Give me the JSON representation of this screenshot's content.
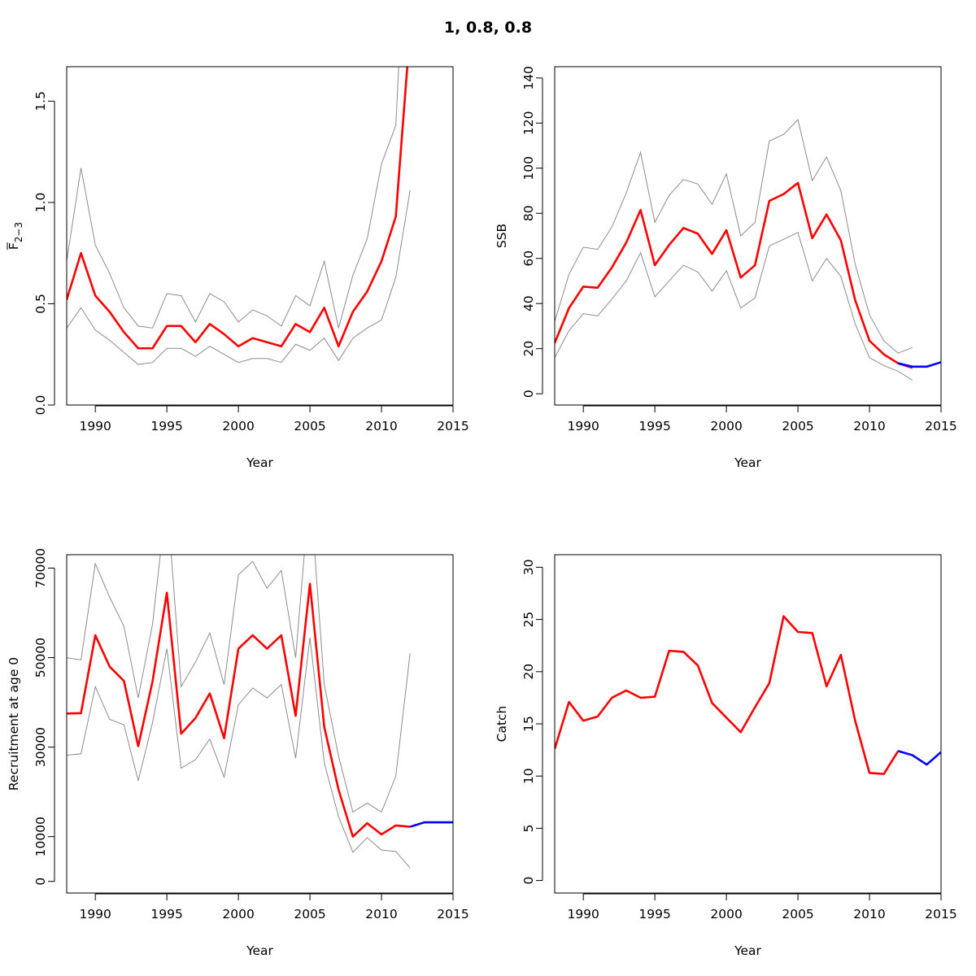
{
  "title": "1, 0.8, 0.8",
  "colors": {
    "estimate": "#ff0000",
    "projection": "#0000ff",
    "interval": "#8c8c8c"
  },
  "chart_data": [
    {
      "type": "line",
      "id": "fbar",
      "xlabel": "Year",
      "ylabel": "F",
      "ylabel_sub": "2−3",
      "xlim": [
        1988,
        2015
      ],
      "ylim": [
        0,
        1.67
      ],
      "xticks": [
        1990,
        1995,
        2000,
        2005,
        2010,
        2015
      ],
      "yticks": [
        0.0,
        0.5,
        1.0,
        1.5
      ],
      "ytick_labels": [
        "0.0",
        "0.5",
        "1.0",
        "1.5"
      ],
      "series": [
        {
          "role": "estimate",
          "x": [
            1988,
            1989,
            1990,
            1991,
            1992,
            1993,
            1994,
            1995,
            1996,
            1997,
            1998,
            1999,
            2000,
            2001,
            2002,
            2003,
            2004,
            2005,
            2006,
            2007,
            2008,
            2009,
            2010,
            2011,
            2012
          ],
          "y": [
            0.52,
            0.75,
            0.54,
            0.46,
            0.36,
            0.28,
            0.28,
            0.39,
            0.39,
            0.31,
            0.4,
            0.35,
            0.29,
            0.33,
            0.31,
            0.29,
            0.4,
            0.36,
            0.48,
            0.29,
            0.46,
            0.56,
            0.71,
            0.93,
            1.85
          ]
        },
        {
          "role": "upper",
          "x": [
            1988,
            1989,
            1990,
            1991,
            1992,
            1993,
            1994,
            1995,
            1996,
            1997,
            1998,
            1999,
            2000,
            2001,
            2002,
            2003,
            2004,
            2005,
            2006,
            2007,
            2008,
            2009,
            2010,
            2011,
            2012
          ],
          "y": [
            0.71,
            1.17,
            0.79,
            0.65,
            0.48,
            0.39,
            0.38,
            0.55,
            0.54,
            0.41,
            0.55,
            0.51,
            0.41,
            0.47,
            0.44,
            0.39,
            0.54,
            0.49,
            0.71,
            0.38,
            0.64,
            0.82,
            1.19,
            1.38,
            2.8
          ]
        },
        {
          "role": "lower",
          "x": [
            1988,
            1989,
            1990,
            1991,
            1992,
            1993,
            1994,
            1995,
            1996,
            1997,
            1998,
            1999,
            2000,
            2001,
            2002,
            2003,
            2004,
            2005,
            2006,
            2007,
            2008,
            2009,
            2010,
            2011,
            2012
          ],
          "y": [
            0.38,
            0.48,
            0.37,
            0.32,
            0.26,
            0.2,
            0.21,
            0.28,
            0.28,
            0.24,
            0.29,
            0.25,
            0.21,
            0.23,
            0.23,
            0.21,
            0.3,
            0.27,
            0.33,
            0.22,
            0.33,
            0.38,
            0.42,
            0.63,
            1.06
          ]
        }
      ]
    },
    {
      "type": "line",
      "id": "ssb",
      "xlabel": "Year",
      "ylabel": "SSB",
      "xlim": [
        1988,
        2015
      ],
      "ylim": [
        -5,
        145
      ],
      "xticks": [
        1990,
        1995,
        2000,
        2005,
        2010,
        2015
      ],
      "yticks": [
        0,
        20,
        40,
        60,
        80,
        100,
        120,
        140
      ],
      "ytick_labels": [
        "0",
        "20",
        "40",
        "60",
        "80",
        "100",
        "120",
        "140"
      ],
      "series": [
        {
          "role": "estimate",
          "x": [
            1988,
            1989,
            1990,
            1991,
            1992,
            1993,
            1994,
            1995,
            1996,
            1997,
            1998,
            1999,
            2000,
            2001,
            2002,
            2003,
            2004,
            2005,
            2006,
            2007,
            2008,
            2009,
            2010,
            2011,
            2012,
            2013
          ],
          "y": [
            22.5,
            38,
            47.5,
            47,
            56,
            67,
            81.5,
            57,
            66,
            73.5,
            71,
            62,
            72.5,
            51.5,
            57,
            85.5,
            88.5,
            93.5,
            69,
            79.5,
            68,
            41.5,
            23.5,
            17.5,
            13.5,
            11.5
          ]
        },
        {
          "role": "upper",
          "x": [
            1988,
            1989,
            1990,
            1991,
            1992,
            1993,
            1994,
            1995,
            1996,
            1997,
            1998,
            1999,
            2000,
            2001,
            2002,
            2003,
            2004,
            2005,
            2006,
            2007,
            2008,
            2009,
            2010,
            2011,
            2012,
            2013
          ],
          "y": [
            32,
            53,
            65,
            64,
            74,
            89,
            107,
            76,
            88,
            95,
            93,
            84,
            97.5,
            70,
            76,
            112,
            115,
            121.5,
            94.5,
            105,
            90,
            57.5,
            35,
            23.5,
            18,
            20.5
          ]
        },
        {
          "role": "lower",
          "x": [
            1988,
            1989,
            1990,
            1991,
            1992,
            1993,
            1994,
            1995,
            1996,
            1997,
            1998,
            1999,
            2000,
            2001,
            2002,
            2003,
            2004,
            2005,
            2006,
            2007,
            2008,
            2009,
            2010,
            2011,
            2012,
            2013
          ],
          "y": [
            16,
            28,
            35.5,
            34.5,
            42,
            50,
            62.5,
            43,
            50,
            57,
            54,
            45.5,
            54.5,
            38,
            42.5,
            65.5,
            68.5,
            71.5,
            50,
            60,
            52,
            31,
            16,
            12.5,
            10,
            6
          ]
        },
        {
          "role": "projection",
          "x": [
            2012,
            2013,
            2014,
            2015
          ],
          "y": [
            13.5,
            12,
            12,
            14
          ]
        }
      ]
    },
    {
      "type": "line",
      "id": "recruitment",
      "xlabel": "Year",
      "ylabel": "Recruitment at age 0",
      "xlim": [
        1988,
        2015
      ],
      "ylim": [
        -2600,
        73000
      ],
      "xticks": [
        1990,
        1995,
        2000,
        2005,
        2010,
        2015
      ],
      "yticks": [
        0,
        10000,
        30000,
        50000,
        70000
      ],
      "ytick_labels": [
        "0",
        "10000",
        "30000",
        "50000",
        "70000"
      ],
      "series": [
        {
          "role": "estimate",
          "x": [
            1988,
            1989,
            1990,
            1991,
            1992,
            1993,
            1994,
            1995,
            1996,
            1997,
            1998,
            1999,
            2000,
            2001,
            2002,
            2003,
            2004,
            2005,
            2006,
            2007,
            2008,
            2009,
            2010,
            2011,
            2012
          ],
          "y": [
            37500,
            37600,
            55000,
            48000,
            44800,
            30200,
            44700,
            64500,
            33000,
            36500,
            42000,
            32000,
            52000,
            55000,
            52000,
            55000,
            37000,
            66500,
            34500,
            20500,
            10000,
            13000,
            10500,
            12500,
            12200
          ]
        },
        {
          "role": "upper",
          "x": [
            1988,
            1989,
            1990,
            1991,
            1992,
            1993,
            1994,
            1995,
            1996,
            1997,
            1998,
            1999,
            2000,
            2001,
            2002,
            2003,
            2004,
            2005,
            2006,
            2007,
            2008,
            2009,
            2010,
            2011,
            2012
          ],
          "y": [
            50000,
            49500,
            71000,
            63500,
            57000,
            41000,
            57500,
            86000,
            43500,
            49000,
            55500,
            44000,
            68500,
            71500,
            65500,
            69500,
            50000,
            88000,
            44000,
            28000,
            15500,
            17500,
            15500,
            23500,
            51000
          ]
        },
        {
          "role": "lower",
          "x": [
            1988,
            1989,
            1990,
            1991,
            1992,
            1993,
            1994,
            1995,
            1996,
            1997,
            1998,
            1999,
            2000,
            2001,
            2002,
            2003,
            2004,
            2005,
            2006,
            2007,
            2008,
            2009,
            2010,
            2011,
            2012
          ],
          "y": [
            28200,
            28500,
            43500,
            36200,
            35000,
            22500,
            35500,
            52000,
            25300,
            27200,
            31800,
            23300,
            39500,
            43200,
            41000,
            44000,
            27500,
            54500,
            26500,
            14500,
            6500,
            9800,
            7000,
            6700,
            3000
          ]
        },
        {
          "role": "projection",
          "x": [
            2012,
            2013,
            2014,
            2015
          ],
          "y": [
            12200,
            13200,
            13200,
            13200
          ]
        }
      ]
    },
    {
      "type": "line",
      "id": "catch",
      "xlabel": "Year",
      "ylabel": "Catch",
      "xlim": [
        1988,
        2015
      ],
      "ylim": [
        -1.2,
        31.2
      ],
      "xticks": [
        1990,
        1995,
        2000,
        2005,
        2010,
        2015
      ],
      "yticks": [
        0,
        5,
        10,
        15,
        20,
        25,
        30
      ],
      "ytick_labels": [
        "0",
        "5",
        "10",
        "15",
        "20",
        "25",
        "30"
      ],
      "series": [
        {
          "role": "estimate",
          "x": [
            1988,
            1989,
            1990,
            1991,
            1992,
            1993,
            1994,
            1995,
            1996,
            1997,
            1998,
            1999,
            2000,
            2001,
            2002,
            2003,
            2004,
            2005,
            2006,
            2007,
            2008,
            2009,
            2010,
            2011,
            2012
          ],
          "y": [
            12.6,
            17.1,
            15.3,
            15.7,
            17.5,
            18.2,
            17.5,
            17.6,
            22.0,
            21.9,
            20.6,
            17.0,
            15.6,
            14.2,
            16.6,
            18.9,
            25.3,
            23.8,
            23.7,
            18.6,
            21.6,
            15.3,
            10.3,
            10.2,
            12.4
          ]
        },
        {
          "role": "projection",
          "x": [
            2012,
            2013,
            2014,
            2015
          ],
          "y": [
            12.4,
            12.0,
            11.1,
            12.3
          ]
        }
      ]
    }
  ]
}
